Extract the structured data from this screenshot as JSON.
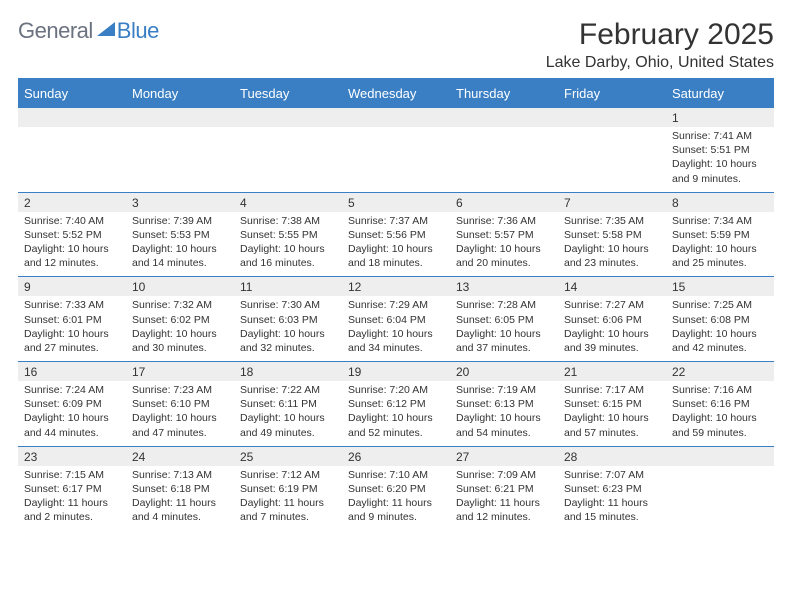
{
  "logo": {
    "text1": "General",
    "text2": "Blue"
  },
  "title": "February 2025",
  "location": "Lake Darby, Ohio, United States",
  "colors": {
    "accent": "#3a7fc4",
    "gray_text": "#6b7280",
    "header_row_bg": "#eeeeee",
    "text": "#333333",
    "background": "#ffffff"
  },
  "day_names": [
    "Sunday",
    "Monday",
    "Tuesday",
    "Wednesday",
    "Thursday",
    "Friday",
    "Saturday"
  ],
  "weeks": [
    [
      {
        "num": "",
        "sunrise": "",
        "sunset": "",
        "daylight": ""
      },
      {
        "num": "",
        "sunrise": "",
        "sunset": "",
        "daylight": ""
      },
      {
        "num": "",
        "sunrise": "",
        "sunset": "",
        "daylight": ""
      },
      {
        "num": "",
        "sunrise": "",
        "sunset": "",
        "daylight": ""
      },
      {
        "num": "",
        "sunrise": "",
        "sunset": "",
        "daylight": ""
      },
      {
        "num": "",
        "sunrise": "",
        "sunset": "",
        "daylight": ""
      },
      {
        "num": "1",
        "sunrise": "Sunrise: 7:41 AM",
        "sunset": "Sunset: 5:51 PM",
        "daylight": "Daylight: 10 hours and 9 minutes."
      }
    ],
    [
      {
        "num": "2",
        "sunrise": "Sunrise: 7:40 AM",
        "sunset": "Sunset: 5:52 PM",
        "daylight": "Daylight: 10 hours and 12 minutes."
      },
      {
        "num": "3",
        "sunrise": "Sunrise: 7:39 AM",
        "sunset": "Sunset: 5:53 PM",
        "daylight": "Daylight: 10 hours and 14 minutes."
      },
      {
        "num": "4",
        "sunrise": "Sunrise: 7:38 AM",
        "sunset": "Sunset: 5:55 PM",
        "daylight": "Daylight: 10 hours and 16 minutes."
      },
      {
        "num": "5",
        "sunrise": "Sunrise: 7:37 AM",
        "sunset": "Sunset: 5:56 PM",
        "daylight": "Daylight: 10 hours and 18 minutes."
      },
      {
        "num": "6",
        "sunrise": "Sunrise: 7:36 AM",
        "sunset": "Sunset: 5:57 PM",
        "daylight": "Daylight: 10 hours and 20 minutes."
      },
      {
        "num": "7",
        "sunrise": "Sunrise: 7:35 AM",
        "sunset": "Sunset: 5:58 PM",
        "daylight": "Daylight: 10 hours and 23 minutes."
      },
      {
        "num": "8",
        "sunrise": "Sunrise: 7:34 AM",
        "sunset": "Sunset: 5:59 PM",
        "daylight": "Daylight: 10 hours and 25 minutes."
      }
    ],
    [
      {
        "num": "9",
        "sunrise": "Sunrise: 7:33 AM",
        "sunset": "Sunset: 6:01 PM",
        "daylight": "Daylight: 10 hours and 27 minutes."
      },
      {
        "num": "10",
        "sunrise": "Sunrise: 7:32 AM",
        "sunset": "Sunset: 6:02 PM",
        "daylight": "Daylight: 10 hours and 30 minutes."
      },
      {
        "num": "11",
        "sunrise": "Sunrise: 7:30 AM",
        "sunset": "Sunset: 6:03 PM",
        "daylight": "Daylight: 10 hours and 32 minutes."
      },
      {
        "num": "12",
        "sunrise": "Sunrise: 7:29 AM",
        "sunset": "Sunset: 6:04 PM",
        "daylight": "Daylight: 10 hours and 34 minutes."
      },
      {
        "num": "13",
        "sunrise": "Sunrise: 7:28 AM",
        "sunset": "Sunset: 6:05 PM",
        "daylight": "Daylight: 10 hours and 37 minutes."
      },
      {
        "num": "14",
        "sunrise": "Sunrise: 7:27 AM",
        "sunset": "Sunset: 6:06 PM",
        "daylight": "Daylight: 10 hours and 39 minutes."
      },
      {
        "num": "15",
        "sunrise": "Sunrise: 7:25 AM",
        "sunset": "Sunset: 6:08 PM",
        "daylight": "Daylight: 10 hours and 42 minutes."
      }
    ],
    [
      {
        "num": "16",
        "sunrise": "Sunrise: 7:24 AM",
        "sunset": "Sunset: 6:09 PM",
        "daylight": "Daylight: 10 hours and 44 minutes."
      },
      {
        "num": "17",
        "sunrise": "Sunrise: 7:23 AM",
        "sunset": "Sunset: 6:10 PM",
        "daylight": "Daylight: 10 hours and 47 minutes."
      },
      {
        "num": "18",
        "sunrise": "Sunrise: 7:22 AM",
        "sunset": "Sunset: 6:11 PM",
        "daylight": "Daylight: 10 hours and 49 minutes."
      },
      {
        "num": "19",
        "sunrise": "Sunrise: 7:20 AM",
        "sunset": "Sunset: 6:12 PM",
        "daylight": "Daylight: 10 hours and 52 minutes."
      },
      {
        "num": "20",
        "sunrise": "Sunrise: 7:19 AM",
        "sunset": "Sunset: 6:13 PM",
        "daylight": "Daylight: 10 hours and 54 minutes."
      },
      {
        "num": "21",
        "sunrise": "Sunrise: 7:17 AM",
        "sunset": "Sunset: 6:15 PM",
        "daylight": "Daylight: 10 hours and 57 minutes."
      },
      {
        "num": "22",
        "sunrise": "Sunrise: 7:16 AM",
        "sunset": "Sunset: 6:16 PM",
        "daylight": "Daylight: 10 hours and 59 minutes."
      }
    ],
    [
      {
        "num": "23",
        "sunrise": "Sunrise: 7:15 AM",
        "sunset": "Sunset: 6:17 PM",
        "daylight": "Daylight: 11 hours and 2 minutes."
      },
      {
        "num": "24",
        "sunrise": "Sunrise: 7:13 AM",
        "sunset": "Sunset: 6:18 PM",
        "daylight": "Daylight: 11 hours and 4 minutes."
      },
      {
        "num": "25",
        "sunrise": "Sunrise: 7:12 AM",
        "sunset": "Sunset: 6:19 PM",
        "daylight": "Daylight: 11 hours and 7 minutes."
      },
      {
        "num": "26",
        "sunrise": "Sunrise: 7:10 AM",
        "sunset": "Sunset: 6:20 PM",
        "daylight": "Daylight: 11 hours and 9 minutes."
      },
      {
        "num": "27",
        "sunrise": "Sunrise: 7:09 AM",
        "sunset": "Sunset: 6:21 PM",
        "daylight": "Daylight: 11 hours and 12 minutes."
      },
      {
        "num": "28",
        "sunrise": "Sunrise: 7:07 AM",
        "sunset": "Sunset: 6:23 PM",
        "daylight": "Daylight: 11 hours and 15 minutes."
      },
      {
        "num": "",
        "sunrise": "",
        "sunset": "",
        "daylight": ""
      }
    ]
  ]
}
